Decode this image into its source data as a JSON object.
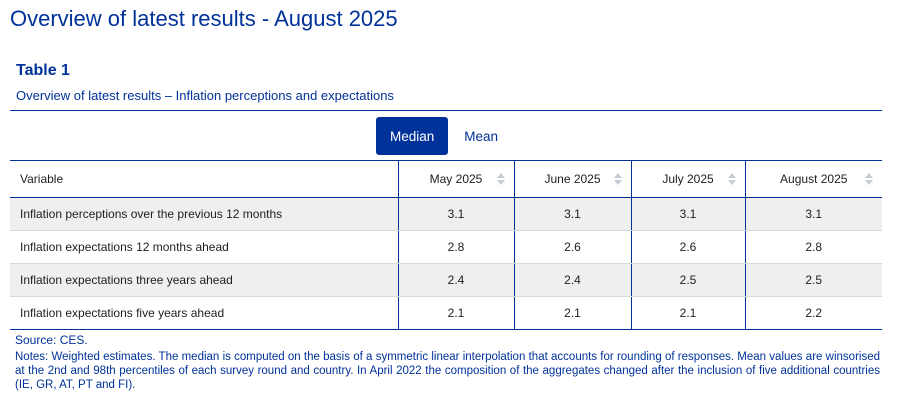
{
  "page": {
    "title": "Overview of latest results - August 2025"
  },
  "table": {
    "label": "Table 1",
    "subtitle": "Overview of latest results – Inflation perceptions and expectations",
    "toggle": {
      "active": "Median",
      "inactive": "Mean"
    },
    "columns": [
      "Variable",
      "May 2025",
      "June 2025",
      "July 2025",
      "August 2025"
    ],
    "rows": [
      {
        "label": "Inflation perceptions over the previous 12 months",
        "values": [
          "3.1",
          "3.1",
          "3.1",
          "3.1"
        ]
      },
      {
        "label": "Inflation expectations 12 months ahead",
        "values": [
          "2.8",
          "2.6",
          "2.6",
          "2.8"
        ]
      },
      {
        "label": "Inflation expectations three years ahead",
        "values": [
          "2.4",
          "2.4",
          "2.5",
          "2.5"
        ]
      },
      {
        "label": "Inflation expectations five years ahead",
        "values": [
          "2.1",
          "2.1",
          "2.1",
          "2.2"
        ]
      }
    ]
  },
  "footer": {
    "source": "Source: CES.",
    "notes": "Notes: Weighted estimates. The median is computed on the basis of a symmetric linear interpolation that accounts for rounding of responses. Mean values are winsorised at the 2nd and 98th percentiles of each survey round and country. In April 2022 the composition of the aggregates changed after the inclusion of five additional countries (IE, GR, AT, PT and FI)."
  },
  "colors": {
    "accent": "#003299",
    "row_shade": "#efefef",
    "sort_icon": "#c7cbd3"
  },
  "icons": {
    "sort": "sort-updown-icon"
  }
}
